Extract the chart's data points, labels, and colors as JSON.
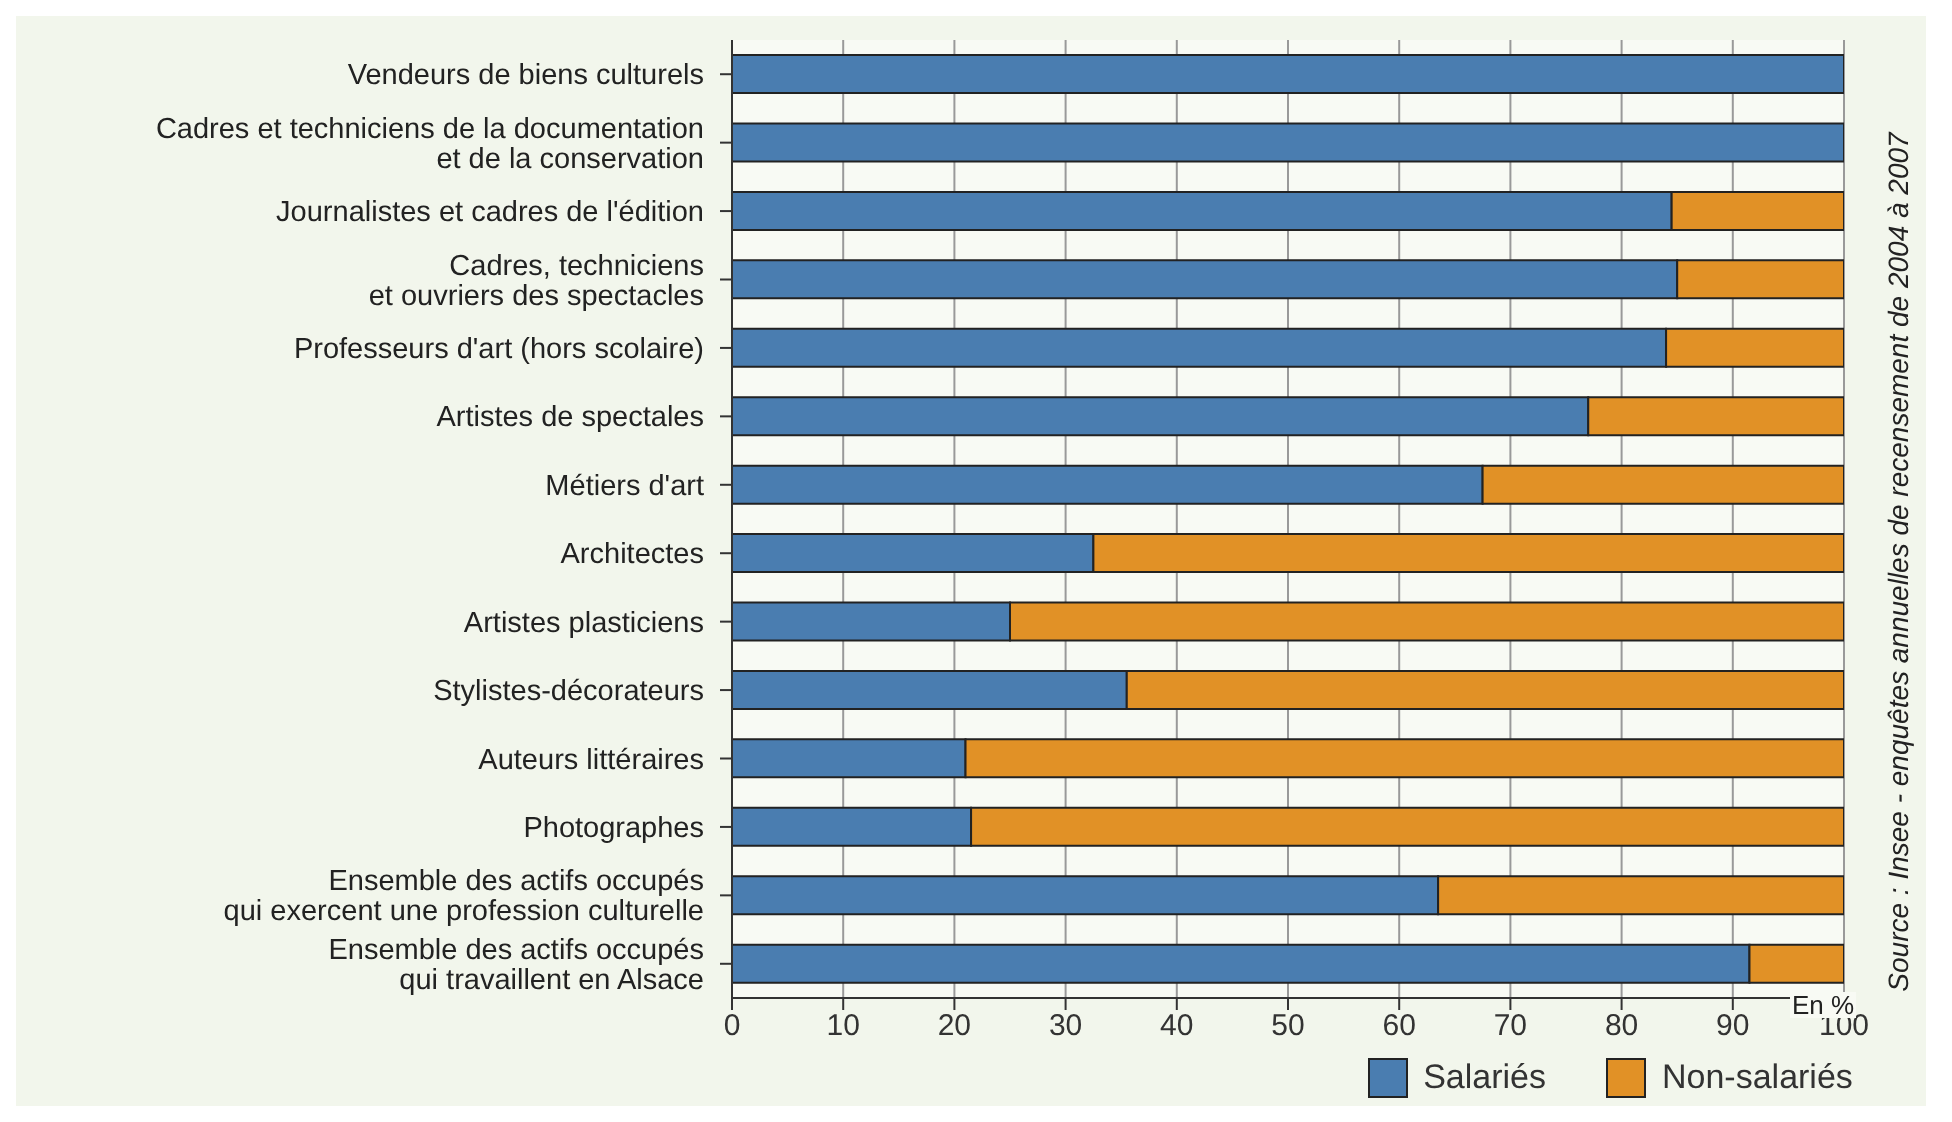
{
  "chart_data": {
    "type": "bar",
    "orientation": "horizontal",
    "stacked": true,
    "categories": [
      "Vendeurs de biens culturels",
      "Cadres et techniciens de la documentation\net de la conservation",
      "Journalistes et cadres de l'édition",
      "Cadres, techniciens\net ouvriers des spectacles",
      "Professeurs d'art (hors scolaire)",
      "Artistes de spectales",
      "Métiers d'art",
      "Architectes",
      "Artistes plasticiens",
      "Stylistes-décorateurs",
      "Auteurs littéraires",
      "Photographes",
      "Ensemble des actifs occupés\nqui exercent une profession culturelle",
      "Ensemble des actifs occupés\nqui travaillent en Alsace"
    ],
    "series": [
      {
        "name": "Salariés",
        "color": "#4a7db0",
        "values": [
          100,
          100,
          84.5,
          85,
          84,
          77,
          67.5,
          32.5,
          25,
          35.5,
          21,
          21.5,
          63.5,
          91.5
        ]
      },
      {
        "name": "Non-salariés",
        "color": "#e19126",
        "values": [
          0,
          0,
          15.5,
          15,
          16,
          23,
          32.5,
          67.5,
          75,
          64.5,
          79,
          78.5,
          36.5,
          8.5
        ]
      }
    ],
    "xlim": [
      0,
      100
    ],
    "xticks": [
      0,
      10,
      20,
      30,
      40,
      50,
      60,
      70,
      80,
      90,
      100
    ],
    "grid": "x",
    "legend": "bottom",
    "annotations": [
      "En %",
      "Source : Insee - enquêtes annuelles de recensement de 2004 à 2007"
    ]
  }
}
